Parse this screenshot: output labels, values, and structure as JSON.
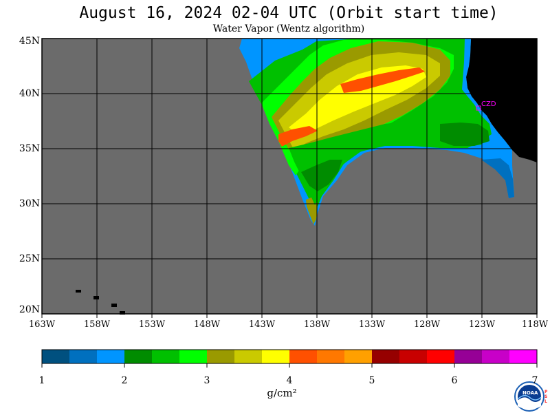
{
  "title": "August 16, 2024  02-04 UTC  (Orbit start time)",
  "subtitle": "Water Vapor (Wentz algorithm)",
  "map": {
    "lat_labels": [
      "45N",
      "40N",
      "35N",
      "30N",
      "25N",
      "20N"
    ],
    "lon_labels": [
      "163W",
      "158W",
      "153W",
      "148W",
      "143W",
      "138W",
      "133W",
      "128W",
      "123W",
      "118W"
    ],
    "lat_range": [
      20,
      45
    ],
    "lon_range": [
      -163,
      -118
    ],
    "grid": true,
    "colors": {
      "no_data": "#6b6b6b",
      "land": "#000000",
      "grid": "#000000",
      "site_marker": "#ff00ff"
    },
    "site_label": "CZD"
  },
  "colorbar": {
    "colors": [
      "#00507f",
      "#0070bf",
      "#0095ff",
      "#008c00",
      "#00c000",
      "#00ff00",
      "#9a9a00",
      "#caca00",
      "#ffff00",
      "#ff5000",
      "#ff7800",
      "#ffa000",
      "#960000",
      "#c80000",
      "#ff0000",
      "#960096",
      "#c800c8",
      "#ff00ff"
    ],
    "range": [
      1,
      7
    ],
    "tick_labels": [
      "1",
      "2",
      "3",
      "4",
      "5",
      "6",
      "7"
    ],
    "units": "g/cm²"
  },
  "logo": {
    "name": "noaa-logo",
    "text": "NOAA",
    "side_text": "PSL"
  }
}
